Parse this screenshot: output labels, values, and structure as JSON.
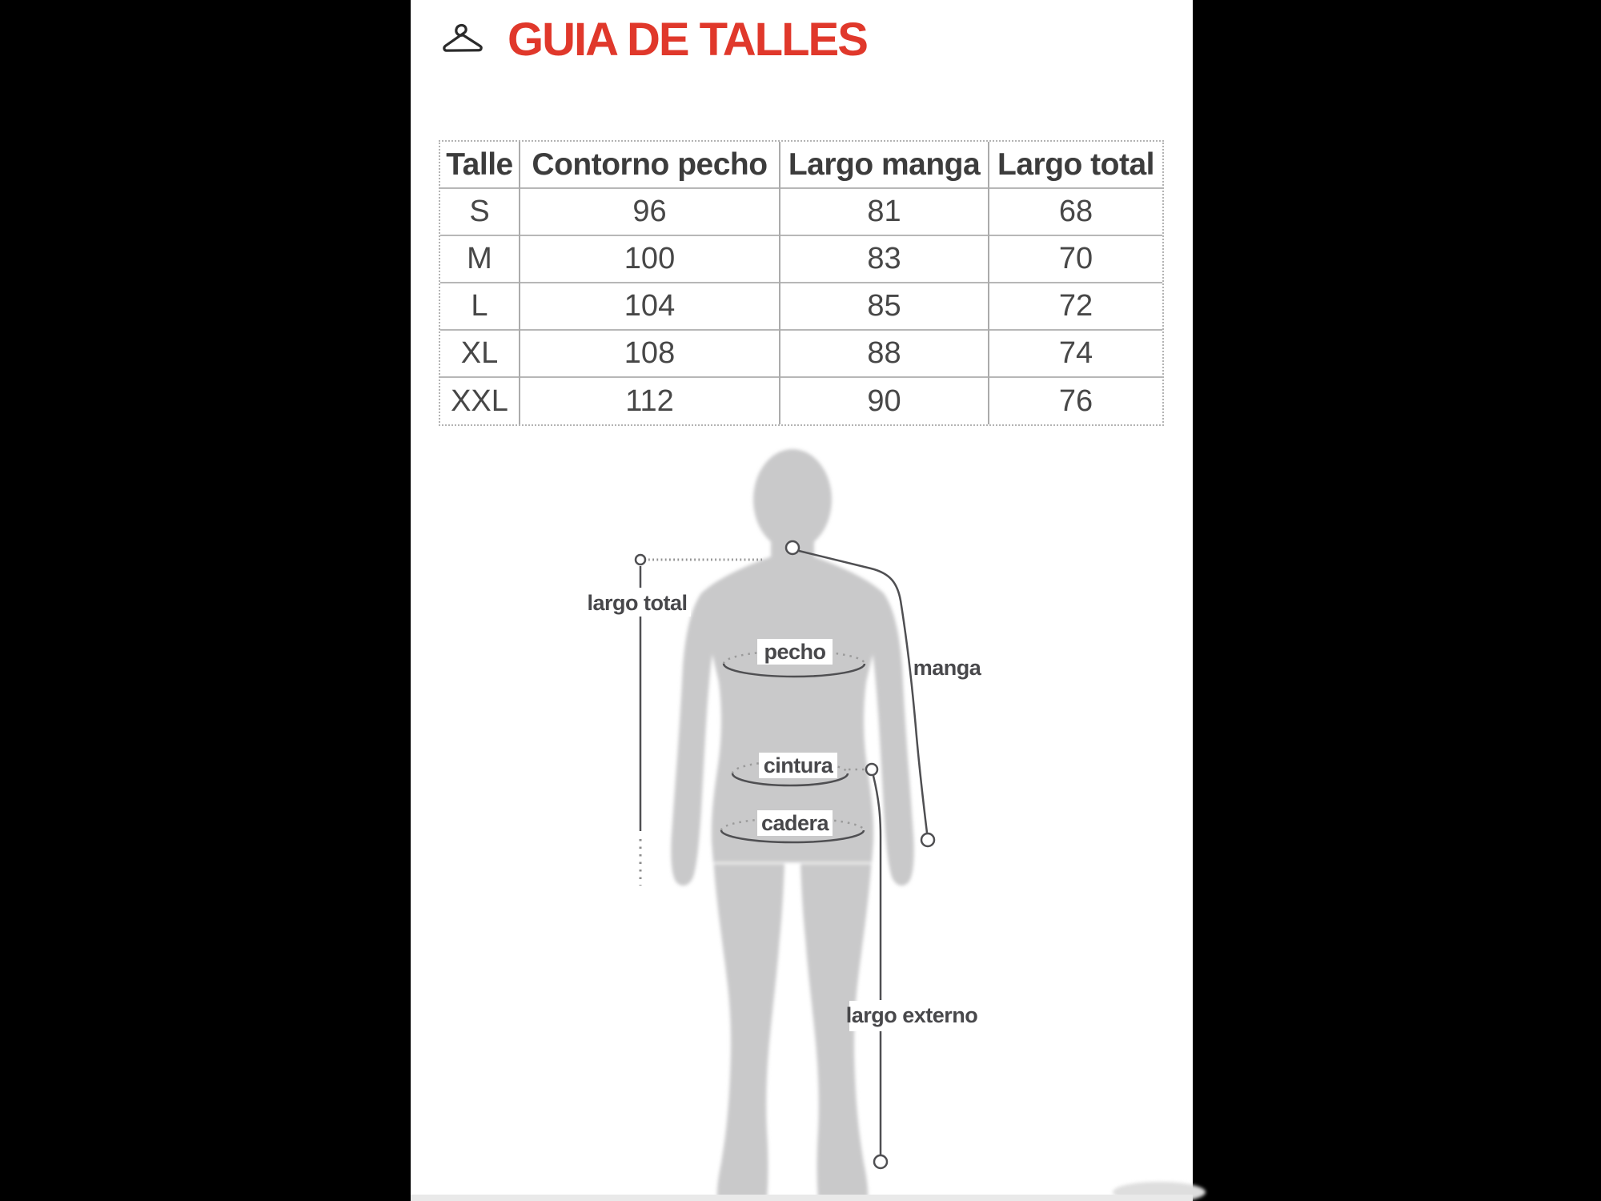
{
  "header": {
    "title": "GUIA DE TALLES",
    "icon": "hanger-icon"
  },
  "size_table": {
    "headers": [
      "Talle",
      "Contorno pecho",
      "Largo manga",
      "Largo total"
    ],
    "rows": [
      [
        "S",
        "96",
        "81",
        "68"
      ],
      [
        "M",
        "100",
        "83",
        "70"
      ],
      [
        "L",
        "104",
        "85",
        "72"
      ],
      [
        "XL",
        "108",
        "88",
        "74"
      ],
      [
        "XXL",
        "112",
        "90",
        "76"
      ]
    ]
  },
  "diagram": {
    "labels": {
      "largo_total": "largo total",
      "pecho": "pecho",
      "manga": "manga",
      "cintura": "cintura",
      "cadera": "cadera",
      "largo_externo": "largo externo"
    }
  },
  "colors": {
    "accent_red": "#e0382b",
    "silhouette_gray": "#c9c9ca",
    "line_dark": "#4f4f52",
    "table_border": "#b3b3b3",
    "background_bars": "#000000"
  }
}
